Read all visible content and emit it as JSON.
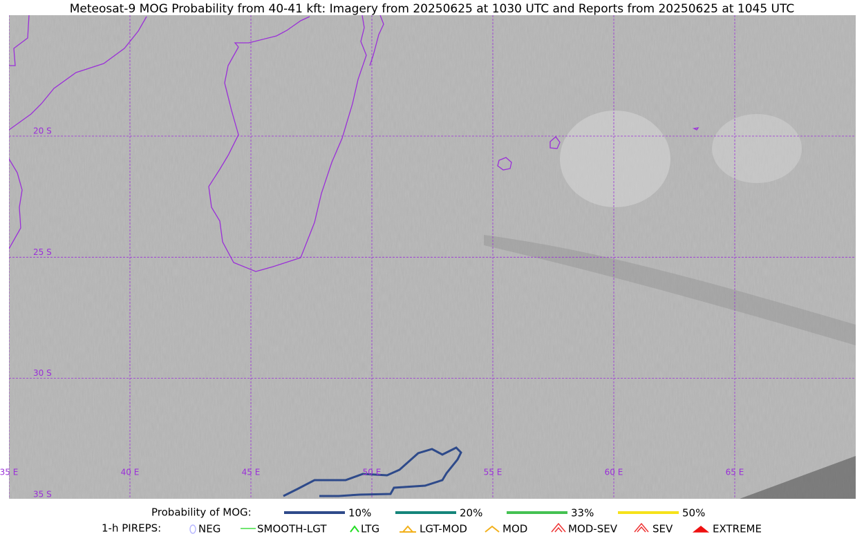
{
  "header": {
    "title": "Meteosat-9 MOG Probability from 40-41 kft: Imagery from 20250625 at 1030 UTC and Reports from 20250625 at 1045 UTC"
  },
  "map": {
    "lat_labels": [
      "20 S",
      "25 S",
      "30 S",
      "35 S"
    ],
    "lon_labels": [
      "35 E",
      "40 E",
      "45 E",
      "50 E",
      "55 E",
      "60 E",
      "65 E"
    ]
  },
  "legend": {
    "mog_title": "Probability of MOG:",
    "mog_items": [
      {
        "label": "10%",
        "color": "#2e4a8a"
      },
      {
        "label": "20%",
        "color": "#15857a"
      },
      {
        "label": "33%",
        "color": "#44c152"
      },
      {
        "label": "50%",
        "color": "#f6e21a"
      }
    ],
    "pireps_title": "1-h PIREPS:",
    "pireps_items": [
      "NEG",
      "SMOOTH-LGT",
      "LTG",
      "LGT-MOD",
      "MOD",
      "MOD-SEV",
      "SEV",
      "EXTREME"
    ]
  }
}
